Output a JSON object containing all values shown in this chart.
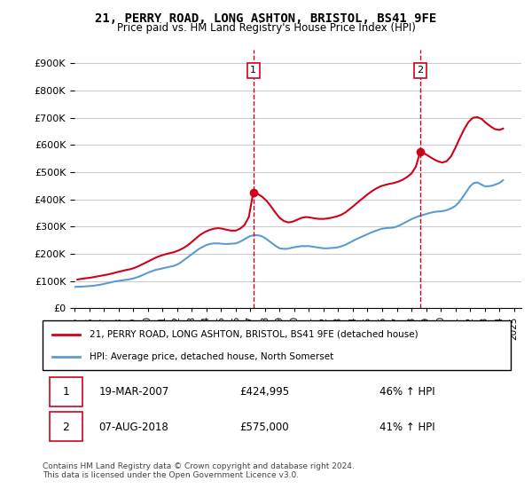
{
  "title": "21, PERRY ROAD, LONG ASHTON, BRISTOL, BS41 9FE",
  "subtitle": "Price paid vs. HM Land Registry's House Price Index (HPI)",
  "ylabel_ticks": [
    "£0",
    "£100K",
    "£200K",
    "£300K",
    "£400K",
    "£500K",
    "£600K",
    "£700K",
    "£800K",
    "£900K"
  ],
  "ytick_values": [
    0,
    100000,
    200000,
    300000,
    400000,
    500000,
    600000,
    700000,
    800000,
    900000
  ],
  "ylim": [
    0,
    950000
  ],
  "xlim_start": 1995.0,
  "xlim_end": 2025.5,
  "transaction1": {
    "date_num": 2007.21,
    "price": 424995,
    "label": "1"
  },
  "transaction2": {
    "date_num": 2018.6,
    "price": 575000,
    "label": "2"
  },
  "legend_line1": "21, PERRY ROAD, LONG ASHTON, BRISTOL, BS41 9FE (detached house)",
  "legend_line2": "HPI: Average price, detached house, North Somerset",
  "table_row1": [
    "1",
    "19-MAR-2007",
    "£424,995",
    "46% ↑ HPI"
  ],
  "table_row2": [
    "2",
    "07-AUG-2018",
    "£575,000",
    "41% ↑ HPI"
  ],
  "footnote": "Contains HM Land Registry data © Crown copyright and database right 2024.\nThis data is licensed under the Open Government Licence v3.0.",
  "color_red": "#d0021b",
  "color_blue": "#5b9bd5",
  "color_dashed": "#d0021b",
  "background_color": "#ffffff",
  "grid_color": "#cccccc",
  "hpi_years": [
    1995.0,
    1995.25,
    1995.5,
    1995.75,
    1996.0,
    1996.25,
    1996.5,
    1996.75,
    1997.0,
    1997.25,
    1997.5,
    1997.75,
    1998.0,
    1998.25,
    1998.5,
    1998.75,
    1999.0,
    1999.25,
    1999.5,
    1999.75,
    2000.0,
    2000.25,
    2000.5,
    2000.75,
    2001.0,
    2001.25,
    2001.5,
    2001.75,
    2002.0,
    2002.25,
    2002.5,
    2002.75,
    2003.0,
    2003.25,
    2003.5,
    2003.75,
    2004.0,
    2004.25,
    2004.5,
    2004.75,
    2005.0,
    2005.25,
    2005.5,
    2005.75,
    2006.0,
    2006.25,
    2006.5,
    2006.75,
    2007.0,
    2007.25,
    2007.5,
    2007.75,
    2008.0,
    2008.25,
    2008.5,
    2008.75,
    2009.0,
    2009.25,
    2009.5,
    2009.75,
    2010.0,
    2010.25,
    2010.5,
    2010.75,
    2011.0,
    2011.25,
    2011.5,
    2011.75,
    2012.0,
    2012.25,
    2012.5,
    2012.75,
    2013.0,
    2013.25,
    2013.5,
    2013.75,
    2014.0,
    2014.25,
    2014.5,
    2014.75,
    2015.0,
    2015.25,
    2015.5,
    2015.75,
    2016.0,
    2016.25,
    2016.5,
    2016.75,
    2017.0,
    2017.25,
    2017.5,
    2017.75,
    2018.0,
    2018.25,
    2018.5,
    2018.75,
    2019.0,
    2019.25,
    2019.5,
    2019.75,
    2020.0,
    2020.25,
    2020.5,
    2020.75,
    2021.0,
    2021.25,
    2021.5,
    2021.75,
    2022.0,
    2022.25,
    2022.5,
    2022.75,
    2023.0,
    2023.25,
    2023.5,
    2023.75,
    2024.0,
    2024.25
  ],
  "hpi_values": [
    78000,
    78500,
    79000,
    80000,
    81000,
    82000,
    84000,
    86000,
    89000,
    92000,
    95000,
    98000,
    100000,
    102000,
    104000,
    106000,
    109000,
    113000,
    118000,
    124000,
    130000,
    135000,
    140000,
    143000,
    146000,
    149000,
    152000,
    155000,
    160000,
    168000,
    178000,
    188000,
    198000,
    208000,
    218000,
    225000,
    232000,
    236000,
    238000,
    238000,
    237000,
    236000,
    236000,
    237000,
    238000,
    243000,
    250000,
    258000,
    265000,
    268000,
    268000,
    265000,
    258000,
    248000,
    238000,
    228000,
    220000,
    218000,
    218000,
    221000,
    224000,
    226000,
    228000,
    228000,
    228000,
    226000,
    224000,
    222000,
    220000,
    220000,
    221000,
    222000,
    224000,
    228000,
    233000,
    240000,
    247000,
    254000,
    260000,
    266000,
    272000,
    278000,
    283000,
    288000,
    292000,
    294000,
    295000,
    296000,
    300000,
    306000,
    313000,
    320000,
    327000,
    333000,
    338000,
    342000,
    346000,
    350000,
    353000,
    355000,
    356000,
    358000,
    362000,
    368000,
    376000,
    390000,
    408000,
    428000,
    448000,
    460000,
    462000,
    455000,
    448000,
    448000,
    450000,
    455000,
    460000,
    470000
  ],
  "property_years": [
    1995.2,
    1995.5,
    1995.8,
    1996.1,
    1996.4,
    1996.7,
    1997.0,
    1997.3,
    1997.6,
    1997.9,
    1998.2,
    1998.5,
    1998.8,
    1999.1,
    1999.4,
    1999.7,
    2000.0,
    2000.3,
    2000.6,
    2000.9,
    2001.2,
    2001.5,
    2001.8,
    2002.1,
    2002.4,
    2002.7,
    2003.0,
    2003.3,
    2003.6,
    2003.9,
    2004.2,
    2004.5,
    2004.8,
    2005.1,
    2005.4,
    2005.7,
    2006.0,
    2006.3,
    2006.6,
    2006.9,
    2007.2,
    2007.5,
    2007.8,
    2008.1,
    2008.4,
    2008.7,
    2009.0,
    2009.3,
    2009.6,
    2009.9,
    2010.2,
    2010.5,
    2010.8,
    2011.1,
    2011.4,
    2011.7,
    2012.0,
    2012.3,
    2012.6,
    2012.9,
    2013.2,
    2013.5,
    2013.8,
    2014.1,
    2014.4,
    2014.7,
    2015.0,
    2015.3,
    2015.6,
    2015.9,
    2016.2,
    2016.5,
    2016.8,
    2017.1,
    2017.4,
    2017.7,
    2018.0,
    2018.3,
    2018.6,
    2018.9,
    2019.2,
    2019.5,
    2019.8,
    2020.1,
    2020.4,
    2020.7,
    2021.0,
    2021.3,
    2021.6,
    2021.9,
    2022.2,
    2022.5,
    2022.8,
    2023.1,
    2023.4,
    2023.7,
    2024.0,
    2024.25
  ],
  "property_values": [
    105000,
    108000,
    110000,
    112000,
    115000,
    118000,
    121000,
    124000,
    128000,
    132000,
    136000,
    140000,
    143000,
    148000,
    155000,
    163000,
    171000,
    179000,
    187000,
    193000,
    198000,
    202000,
    206000,
    212000,
    220000,
    230000,
    243000,
    257000,
    270000,
    280000,
    287000,
    292000,
    294000,
    292000,
    288000,
    285000,
    285000,
    292000,
    305000,
    335000,
    425000,
    420000,
    410000,
    395000,
    375000,
    352000,
    332000,
    320000,
    315000,
    318000,
    325000,
    332000,
    335000,
    333000,
    330000,
    328000,
    328000,
    330000,
    333000,
    337000,
    343000,
    352000,
    365000,
    378000,
    392000,
    405000,
    418000,
    430000,
    440000,
    448000,
    453000,
    457000,
    460000,
    465000,
    472000,
    482000,
    495000,
    520000,
    575000,
    568000,
    558000,
    548000,
    540000,
    535000,
    540000,
    558000,
    590000,
    625000,
    658000,
    685000,
    700000,
    702000,
    695000,
    680000,
    668000,
    658000,
    655000,
    660000
  ]
}
